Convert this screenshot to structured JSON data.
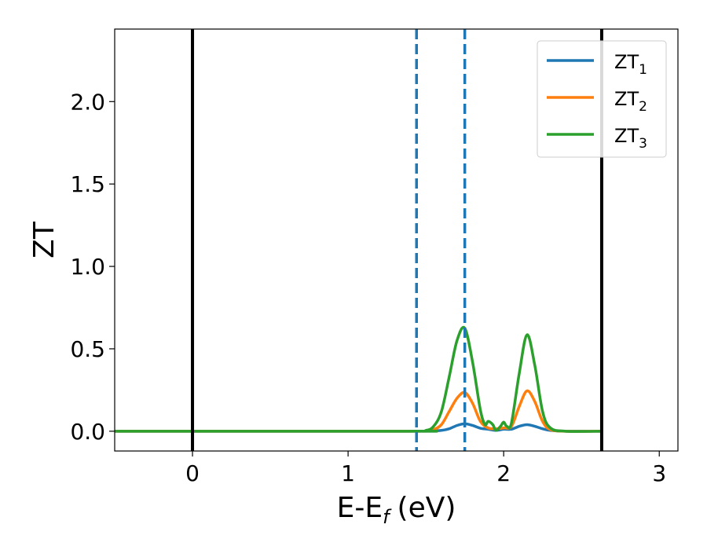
{
  "chart_data": {
    "type": "line",
    "xlabel": "E-E",
    "xlabel_sub": "f",
    "xlabel_unit": "(eV)",
    "ylabel": "ZT",
    "xlim": [
      -0.5,
      3.12
    ],
    "ylim": [
      -0.12,
      2.44
    ],
    "x_ticks": [
      0,
      1,
      2,
      3
    ],
    "x_tick_labels": [
      "0",
      "1",
      "2",
      "3"
    ],
    "y_ticks": [
      0.0,
      0.5,
      1.0,
      1.5,
      2.0
    ],
    "y_tick_labels": [
      "0.0",
      "0.5",
      "1.0",
      "1.5",
      "2.0"
    ],
    "grid": false,
    "legend_position": "top-right",
    "vertical_lines": [
      {
        "x": 0.0,
        "style": "solid",
        "color": "#000000"
      },
      {
        "x": 2.63,
        "style": "solid",
        "color": "#000000"
      },
      {
        "x": 1.44,
        "style": "dashed",
        "color": "#1f77b4"
      },
      {
        "x": 1.75,
        "style": "dashed",
        "color": "#1f77b4"
      }
    ],
    "series": [
      {
        "name": "ZT",
        "name_sub": "1",
        "color": "#1f77b4",
        "x": [
          -0.5,
          1.4,
          1.5,
          1.6,
          1.65,
          1.7,
          1.75,
          1.8,
          1.85,
          1.9,
          1.95,
          2.0,
          2.05,
          2.1,
          2.15,
          2.2,
          2.25,
          2.3,
          2.4,
          2.63
        ],
        "values": [
          0.0,
          0.0,
          0.0,
          0.005,
          0.015,
          0.035,
          0.045,
          0.035,
          0.018,
          0.012,
          0.005,
          0.012,
          0.012,
          0.03,
          0.04,
          0.03,
          0.015,
          0.005,
          0.0,
          0.0
        ]
      },
      {
        "name": "ZT",
        "name_sub": "2",
        "color": "#ff7f0e",
        "x": [
          -0.5,
          1.4,
          1.5,
          1.55,
          1.6,
          1.65,
          1.7,
          1.75,
          1.8,
          1.85,
          1.9,
          1.95,
          2.0,
          2.05,
          2.1,
          2.15,
          2.2,
          2.25,
          2.3,
          2.4,
          2.63
        ],
        "values": [
          0.0,
          0.0,
          0.002,
          0.01,
          0.04,
          0.12,
          0.2,
          0.235,
          0.17,
          0.06,
          0.02,
          0.015,
          0.02,
          0.03,
          0.15,
          0.245,
          0.18,
          0.06,
          0.01,
          0.0,
          0.0
        ]
      },
      {
        "name": "ZT",
        "name_sub": "3",
        "color": "#2ca02c",
        "x": [
          -0.5,
          1.4,
          1.5,
          1.55,
          1.6,
          1.65,
          1.7,
          1.75,
          1.8,
          1.85,
          1.88,
          1.9,
          1.93,
          1.95,
          1.98,
          2.0,
          2.02,
          2.05,
          2.1,
          2.15,
          2.2,
          2.25,
          2.3,
          2.4,
          2.63
        ],
        "values": [
          0.0,
          0.0,
          0.005,
          0.03,
          0.12,
          0.33,
          0.55,
          0.625,
          0.42,
          0.13,
          0.04,
          0.06,
          0.04,
          0.005,
          0.03,
          0.055,
          0.03,
          0.05,
          0.35,
          0.585,
          0.4,
          0.12,
          0.02,
          0.0,
          0.0
        ]
      }
    ]
  }
}
